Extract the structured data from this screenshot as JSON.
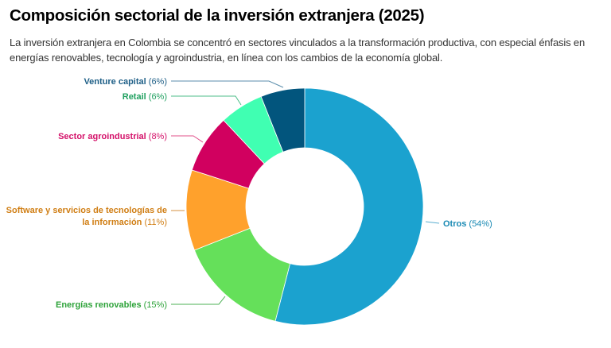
{
  "chart_data": {
    "type": "pie",
    "variant": "donut",
    "title": "Composición sectorial de la inversión extranjera (2025)",
    "subtitle": "La inversión extranjera en Colombia se concentró en sectores vinculados a la transformación productiva, con especial énfasis en energías renovables, tecnología y agroindustria, en línea con los cambios de la economía global.",
    "unit": "%",
    "slices": [
      {
        "label": "Otros",
        "value": 54,
        "value_label": "(54%)",
        "color": "#1ba2cf",
        "label_color": "#1a8ab4",
        "line_color": "#5aaed0",
        "side": "right"
      },
      {
        "label": "Energías renovables",
        "value": 15,
        "value_label": "(15%)",
        "color": "#65e05a",
        "label_color": "#2ea33a",
        "line_color": "#4cb055",
        "side": "left"
      },
      {
        "label_lines": [
          "Software y servicios de tecnologías de",
          "la información"
        ],
        "label": "Software y servicios de tecnologías de la información",
        "value": 11,
        "value_label": "(11%)",
        "color": "#ffa12c",
        "label_color": "#d07e14",
        "line_color": "#d59040",
        "side": "left"
      },
      {
        "label": "Sector agroindustrial",
        "value": 8,
        "value_label": "(8%)",
        "color": "#d1005f",
        "label_color": "#d4126a",
        "line_color": "#e0508a",
        "side": "left"
      },
      {
        "label": "Retail",
        "value": 6,
        "value_label": "(6%)",
        "color": "#40ffb2",
        "label_color": "#20a060",
        "line_color": "#4dbd88",
        "side": "left"
      },
      {
        "label": "Venture capital",
        "value": 6,
        "value_label": "(6%)",
        "color": "#02557d",
        "label_color": "#1e5f87",
        "line_color": "#5b8eac",
        "side": "left"
      }
    ],
    "start_angle": "12 o'clock",
    "direction": "clockwise",
    "legend": "none (direct labels)"
  }
}
